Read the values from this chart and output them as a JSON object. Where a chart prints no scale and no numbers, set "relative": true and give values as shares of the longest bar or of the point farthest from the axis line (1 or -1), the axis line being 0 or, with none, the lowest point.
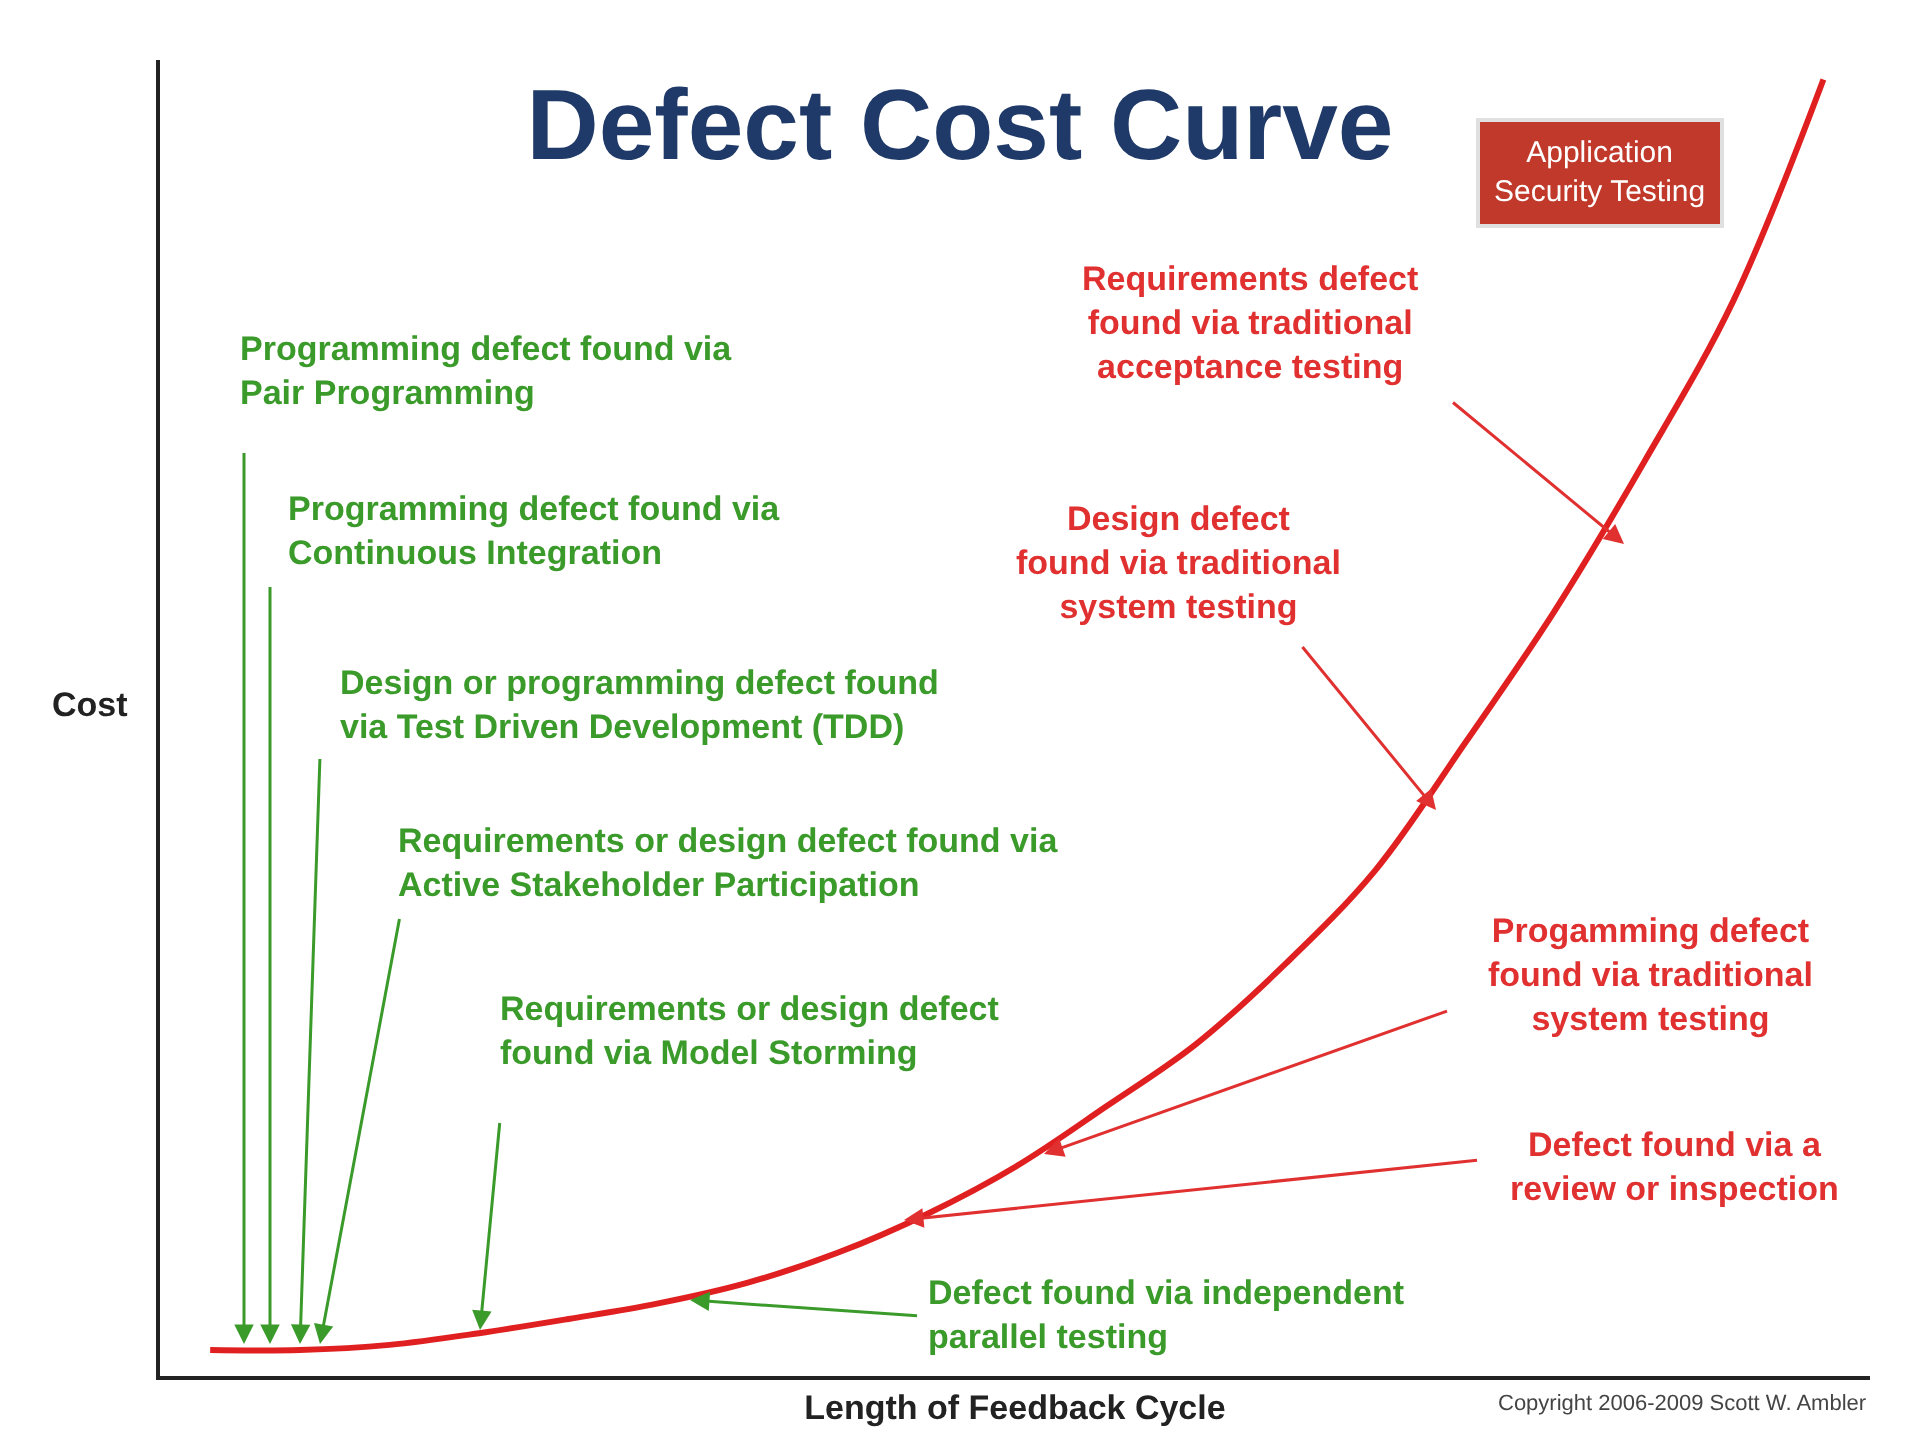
{
  "chart_data": {
    "type": "line",
    "title": "Defect Cost Curve",
    "xlabel": "Length of Feedback Cycle",
    "ylabel": "Cost",
    "relative": true,
    "marker": "none",
    "line_style": "solid",
    "categories": [
      null,
      null,
      null,
      null,
      null,
      null,
      null,
      null,
      null,
      null,
      null,
      null,
      null,
      null,
      null,
      null,
      null,
      null,
      null
    ],
    "series": [
      {
        "color": "#e02020",
        "values": [
          0.02,
          0.02,
          0.024,
          0.033,
          0.044,
          0.056,
          0.072,
          0.095,
          0.125,
          0.162,
          0.208,
          0.256,
          0.318,
          0.39,
          0.488,
          0.59,
          0.705,
          0.83,
          1
        ]
      }
    ],
    "annotations": [
      "Programming defect found via\nPair Programming",
      "Programming defect found via\nContinuous Integration",
      "Design or programming defect found\nvia Test Driven Development (TDD)",
      "Requirements or design defect found via\nActive Stakeholder Participation",
      "Requirements or design defect\nfound via Model Storming",
      "Defect found via independent\nparallel testing",
      "Requirements defect\nfound via traditional\nacceptance testing",
      "Design defect\nfound via traditional\nsystem testing",
      "Progamming defect\nfound via traditional\nsystem testing",
      "Defect found via a\nreview or inspection",
      "Application\nSecurity Testing",
      "Copyright 2006-2009 Scott W. Ambler"
    ]
  }
}
